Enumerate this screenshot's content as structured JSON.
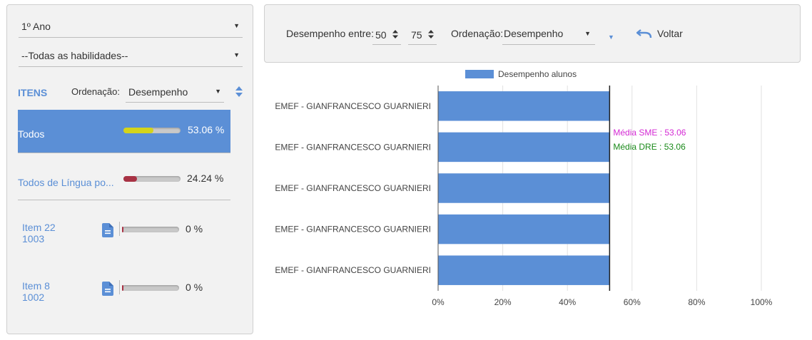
{
  "left_panel": {
    "year_select": {
      "value": "1º Ano"
    },
    "skills_select": {
      "value": "--Todas as habilidades--"
    },
    "itens_title": "ITENS",
    "ordering_label": "Ordenação:",
    "ordering_value": "Desempenho",
    "items": [
      {
        "label": "Todos",
        "pct_text": "53.06 %",
        "progress": 0.53,
        "fill_color": "#d4d41a",
        "selected": true
      },
      {
        "label": "Todos de Língua po...",
        "pct_text": "24.24 %",
        "progress": 0.24,
        "fill_color": "#a83244",
        "selected": false
      },
      {
        "label": "Item 22",
        "code": "1003",
        "pct_text": "0 %",
        "progress": 0.0,
        "fill_color": "#a83244",
        "icon": "document-icon"
      },
      {
        "label": "Item 8",
        "code": "1002",
        "pct_text": "0 %",
        "progress": 0.0,
        "fill_color": "#a83244",
        "icon": "document-icon"
      }
    ]
  },
  "top_panel": {
    "range_label": "Desempenho entre:",
    "range_min": "50",
    "range_max": "75",
    "ordering_label": "Ordenação:",
    "ordering_value": "Desempenho",
    "back_label": "Voltar"
  },
  "colors": {
    "accent": "#5b8fd6",
    "bar": "#5b8fd6",
    "sme": "#d42ad4",
    "dre": "#1a8a1a"
  },
  "chart_data": {
    "type": "bar",
    "orientation": "horizontal",
    "legend": "Desempenho alunos",
    "categories": [
      "EMEF - GIANFRANCESCO GUARNIERI",
      "EMEF - GIANFRANCESCO GUARNIERI",
      "EMEF - GIANFRANCESCO GUARNIERI",
      "EMEF - GIANFRANCESCO GUARNIERI",
      "EMEF - GIANFRANCESCO GUARNIERI"
    ],
    "values": [
      53.06,
      53.06,
      53.06,
      53.06,
      53.06
    ],
    "xlim": [
      0,
      100
    ],
    "x_ticks": [
      "0%",
      "20%",
      "40%",
      "60%",
      "80%",
      "100%"
    ],
    "reference_line": 53.06,
    "annotations": [
      {
        "text": "Média SME : 53.06",
        "color": "#d42ad4"
      },
      {
        "text": "Média DRE : 53.06",
        "color": "#1a8a1a"
      }
    ]
  }
}
